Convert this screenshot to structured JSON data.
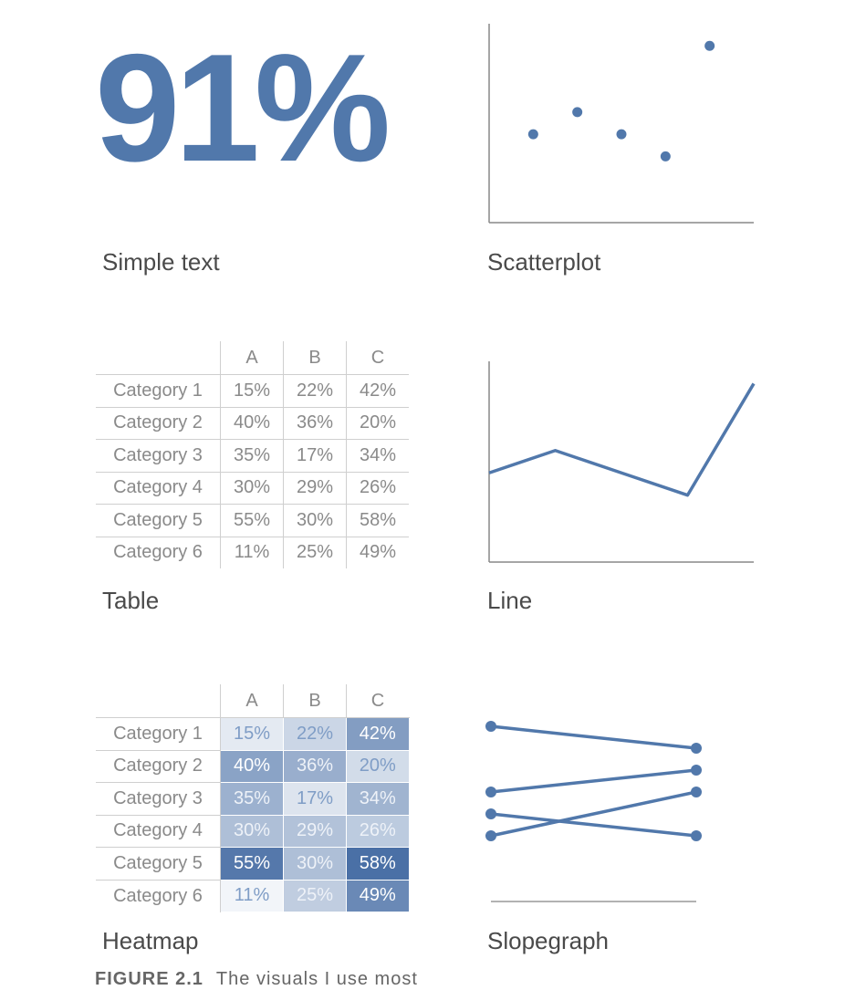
{
  "captions": {
    "simple_text": "Simple text",
    "scatter": "Scatterplot",
    "table": "Table",
    "line": "Line",
    "heatmap": "Heatmap",
    "slopegraph": "Slopegraph"
  },
  "simple_text_value": "91%",
  "footer": {
    "label": "FIGURE 2.1",
    "text": "The visuals I use most"
  },
  "accent_color": "#5178ab",
  "chart_data": [
    {
      "type": "scatter",
      "x": [
        1,
        2,
        3,
        4,
        5
      ],
      "y": [
        4,
        5,
        4,
        3,
        8
      ],
      "xlim": [
        0,
        6
      ],
      "ylim": [
        0,
        9
      ]
    },
    {
      "type": "table",
      "columns": [
        "A",
        "B",
        "C"
      ],
      "rows": [
        {
          "label": "Category 1",
          "values": [
            "15%",
            "22%",
            "42%"
          ]
        },
        {
          "label": "Category 2",
          "values": [
            "40%",
            "36%",
            "20%"
          ]
        },
        {
          "label": "Category 3",
          "values": [
            "35%",
            "17%",
            "34%"
          ]
        },
        {
          "label": "Category 4",
          "values": [
            "30%",
            "29%",
            "26%"
          ]
        },
        {
          "label": "Category 5",
          "values": [
            "55%",
            "30%",
            "58%"
          ]
        },
        {
          "label": "Category 6",
          "values": [
            "11%",
            "25%",
            "49%"
          ]
        }
      ]
    },
    {
      "type": "line",
      "x": [
        0,
        1,
        2,
        3,
        4
      ],
      "y": [
        4,
        5,
        4,
        3,
        8
      ],
      "xlim": [
        0,
        4
      ],
      "ylim": [
        0,
        9
      ]
    },
    {
      "type": "heatmap",
      "columns": [
        "A",
        "B",
        "C"
      ],
      "rows": [
        {
          "label": "Category 1",
          "values": [
            15,
            22,
            42
          ]
        },
        {
          "label": "Category 2",
          "values": [
            40,
            36,
            20
          ]
        },
        {
          "label": "Category 3",
          "values": [
            35,
            17,
            34
          ]
        },
        {
          "label": "Category 4",
          "values": [
            30,
            29,
            26
          ]
        },
        {
          "label": "Category 5",
          "values": [
            55,
            30,
            58
          ]
        },
        {
          "label": "Category 6",
          "values": [
            11,
            25,
            49
          ]
        }
      ],
      "value_suffix": "%",
      "color_low": "#f2f5f9",
      "color_high": "#4a70a6"
    },
    {
      "type": "slopegraph",
      "series": [
        {
          "start": 8,
          "end": 7
        },
        {
          "start": 5,
          "end": 6
        },
        {
          "start": 4,
          "end": 3
        },
        {
          "start": 3,
          "end": 5
        }
      ],
      "ylim": [
        0,
        8
      ]
    }
  ]
}
